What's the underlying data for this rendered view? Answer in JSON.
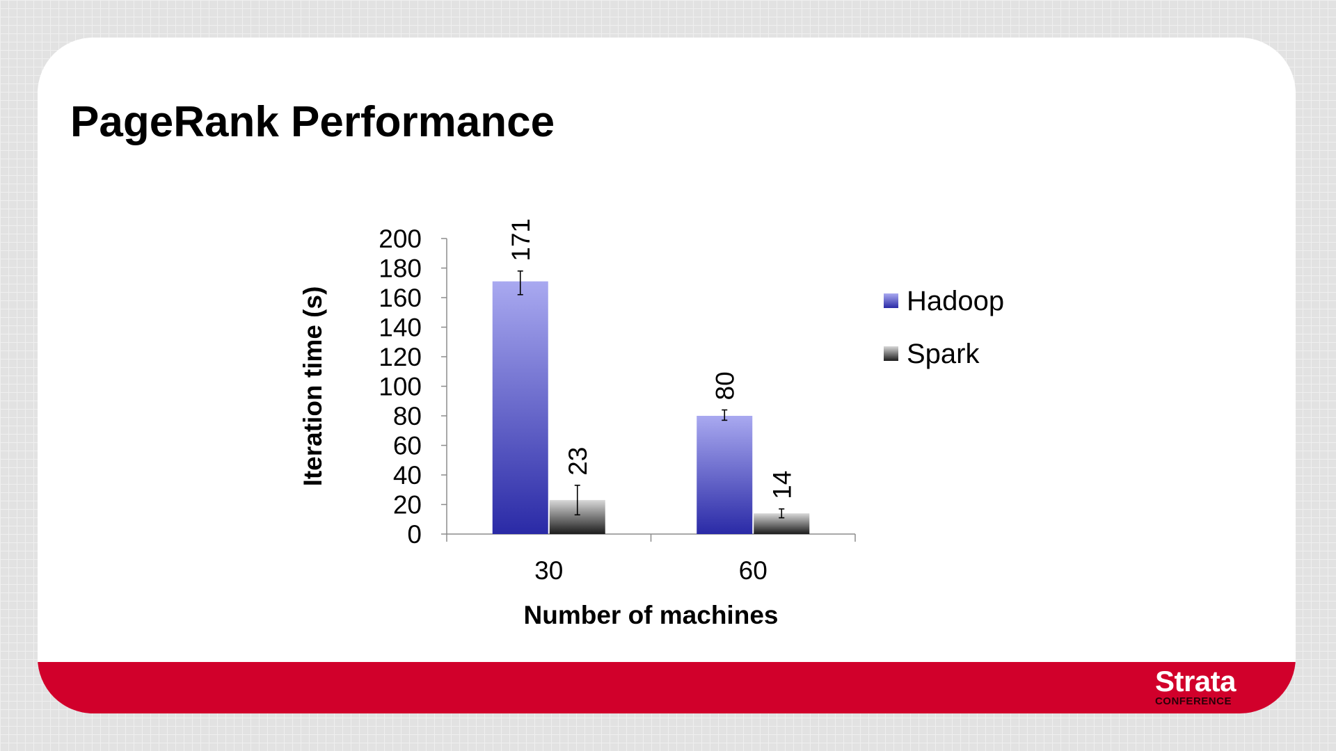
{
  "slide": {
    "title": "PageRank Performance"
  },
  "logo": {
    "main": "Strata",
    "sub": "CONFERENCE"
  },
  "colors": {
    "accent_red": "#d1002b",
    "hadoop_top": "#a9a9f0",
    "hadoop_bottom": "#2a2aa6",
    "spark_top": "#d8d8d8",
    "spark_bottom": "#1c1c1c"
  },
  "chart_data": {
    "type": "bar",
    "title": "",
    "xlabel": "Number of machines",
    "ylabel": "Iteration time (s)",
    "categories": [
      "30",
      "60"
    ],
    "ylim": [
      0,
      200
    ],
    "yticks": [
      0,
      20,
      40,
      60,
      80,
      100,
      120,
      140,
      160,
      180,
      200
    ],
    "series": [
      {
        "name": "Hadoop",
        "values": [
          171,
          80
        ],
        "error": [
          [
            162,
            178
          ],
          [
            77,
            84
          ]
        ],
        "labels": [
          "171",
          "80"
        ]
      },
      {
        "name": "Spark",
        "values": [
          23,
          14
        ],
        "error": [
          [
            13,
            33
          ],
          [
            11,
            17
          ]
        ],
        "labels": [
          "23",
          "14"
        ]
      }
    ],
    "grid": false,
    "legend": "right"
  }
}
